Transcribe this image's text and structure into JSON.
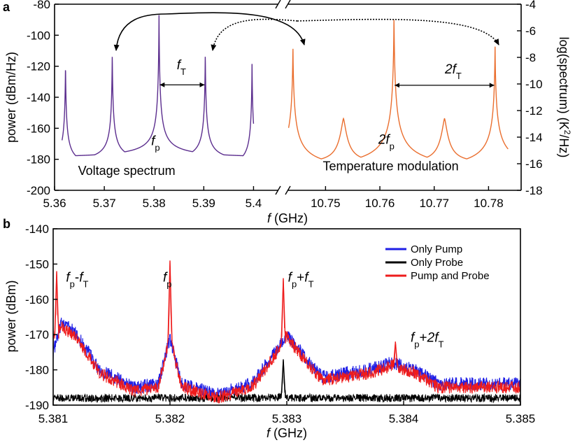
{
  "chart_data": [
    {
      "panel": "a",
      "type": "line",
      "xlabel_var": "f",
      "xlabel_unit": " (GHz)",
      "ylabel_left": "power (dBm/Hz)",
      "ylabel_right_pre": "log(spectrum) (K",
      "ylabel_right_sup": "2",
      "ylabel_right_post": "/Hz)",
      "ylim_left": [
        -200,
        -80
      ],
      "ylim_right": [
        -18,
        -4
      ],
      "x_segments": [
        {
          "xlim": [
            5.36,
            5.405
          ],
          "ticks": [
            "5.36",
            "5.37",
            "5.38",
            "5.39",
            "5.4"
          ]
        },
        {
          "xlim": [
            10.743,
            10.786
          ],
          "ticks": [
            "10.75",
            "10.76",
            "10.77",
            "10.78"
          ]
        }
      ],
      "yticks_left": [
        "-80",
        "-100",
        "-120",
        "-140",
        "-160",
        "-180",
        "-200"
      ],
      "yticks_right": [
        "-4",
        "-6",
        "-8",
        "-10",
        "-12",
        "-14",
        "-16",
        "-18"
      ],
      "colors": {
        "voltage": "#5b2d8e",
        "temperature": "#ea6e2e"
      },
      "series": [
        {
          "name": "Voltage spectrum",
          "axis": "left",
          "baseline": [
            [
              5.3615,
              -187
            ],
            [
              5.37,
              -184
            ],
            [
              5.381,
              -180
            ],
            [
              5.39,
              -183
            ],
            [
              5.4,
              -188
            ]
          ],
          "peaks": [
            {
              "x": 5.3622,
              "y": -117
            },
            {
              "x": 5.3716,
              "y": -110
            },
            {
              "x": 5.381,
              "y": -85
            },
            {
              "x": 5.3903,
              "y": -110
            },
            {
              "x": 5.3997,
              "y": -117
            }
          ]
        },
        {
          "name": "Temperature modulation",
          "axis": "right",
          "peaks": [
            {
              "x": 10.744,
              "y": -6.8
            },
            {
              "x": 10.7626,
              "y": -4.5
            },
            {
              "x": 10.7812,
              "y": -6.8
            }
          ],
          "half_peaks": [
            {
              "x": 10.7533,
              "y": -12.6
            },
            {
              "x": 10.7719,
              "y": -12.6
            }
          ],
          "troughs": [
            {
              "x": 10.7458,
              "y": -16.5
            },
            {
              "x": 10.7533,
              "y": -14.8
            },
            {
              "x": 10.7605,
              "y": -14.3
            },
            {
              "x": 10.7647,
              "y": -14.3
            },
            {
              "x": 10.7719,
              "y": -15.1
            },
            {
              "x": 10.7794,
              "y": -16.3
            }
          ],
          "start": {
            "x": 10.7432,
            "y": -13.5
          }
        }
      ],
      "annotations": [
        {
          "text_var": "f",
          "text_sub": "T",
          "x": 5.3855,
          "y": -122
        },
        {
          "text_var": "f",
          "text_sub": "p",
          "x": 5.3803,
          "y": -171
        },
        {
          "text_var": "2f",
          "text_sub": "T",
          "x": 10.7735,
          "y": -9.2
        },
        {
          "text_var": "2f",
          "text_sub": "p",
          "x": 10.7612,
          "y": -14.5
        }
      ],
      "spectrum_labels": [
        {
          "text": "Voltage spectrum",
          "x": 5.3745,
          "y": -190
        },
        {
          "text": "Temperature modulation",
          "x": 10.762,
          "y": -16.5
        }
      ],
      "double_arrows": [
        {
          "segment": 0,
          "x1": 5.381,
          "x2": 5.3903,
          "y": -132
        },
        {
          "segment": 1,
          "x1": 10.7626,
          "x2": 10.7812,
          "y": -10.1
        }
      ]
    },
    {
      "panel": "b",
      "type": "line",
      "xlabel_var": "f",
      "xlabel_unit": " (GHz)",
      "ylabel": "power (dBm)",
      "xlim": [
        5.381,
        5.385
      ],
      "ylim": [
        -190,
        -140
      ],
      "xticks": [
        5.381,
        5.382,
        5.383,
        5.384,
        5.385
      ],
      "xtick_labels": [
        "5.381",
        "5.382",
        "5.383",
        "5.384",
        "5.385"
      ],
      "yticks": [
        -140,
        -150,
        -160,
        -170,
        -180,
        -190
      ],
      "ytick_labels": [
        "-140",
        "-150",
        "-160",
        "-170",
        "-180",
        "-190"
      ],
      "legend_position": "top-right",
      "series": [
        {
          "name": "Only Pump",
          "color": "#1f1fe6",
          "envelope": [
            [
              5.381,
              -175
            ],
            [
              5.38108,
              -166
            ],
            [
              5.3812,
              -170
            ],
            [
              5.3814,
              -180
            ],
            [
              5.3817,
              -185
            ],
            [
              5.3819,
              -184
            ],
            [
              5.382,
              -171
            ],
            [
              5.3821,
              -184
            ],
            [
              5.3824,
              -187
            ],
            [
              5.3827,
              -184
            ],
            [
              5.3829,
              -175
            ],
            [
              5.383,
              -170
            ],
            [
              5.3831,
              -174
            ],
            [
              5.3833,
              -182
            ],
            [
              5.3837,
              -180
            ],
            [
              5.3839,
              -178
            ],
            [
              5.3841,
              -180
            ],
            [
              5.3843,
              -184
            ],
            [
              5.385,
              -184
            ]
          ],
          "peaks": [],
          "noise": 1.2
        },
        {
          "name": "Only Probe",
          "color": "#000000",
          "envelope": [
            [
              5.381,
              -188
            ],
            [
              5.385,
              -188
            ]
          ],
          "peaks": [
            {
              "x": 5.38297,
              "y": -177
            }
          ],
          "noise": 0.7
        },
        {
          "name": "Pump and Probe",
          "color": "#ee1c1c",
          "envelope": [
            [
              5.381,
              -173
            ],
            [
              5.38108,
              -168
            ],
            [
              5.3812,
              -171
            ],
            [
              5.3814,
              -181
            ],
            [
              5.3817,
              -186
            ],
            [
              5.3819,
              -185
            ],
            [
              5.382,
              -172
            ],
            [
              5.3821,
              -185
            ],
            [
              5.3824,
              -188
            ],
            [
              5.3827,
              -185
            ],
            [
              5.3829,
              -176
            ],
            [
              5.383,
              -171
            ],
            [
              5.3831,
              -175
            ],
            [
              5.3833,
              -183
            ],
            [
              5.3837,
              -181
            ],
            [
              5.3839,
              -179
            ],
            [
              5.3841,
              -181
            ],
            [
              5.3843,
              -185
            ],
            [
              5.385,
              -185
            ]
          ],
          "peaks": [
            {
              "x": 5.38103,
              "y": -152
            },
            {
              "x": 5.382,
              "y": -149
            },
            {
              "x": 5.38297,
              "y": -154
            },
            {
              "x": 5.38393,
              "y": -172
            }
          ],
          "noise": 1.1
        }
      ],
      "annotations": [
        {
          "var1": "f",
          "sub1": "p",
          "op": "-",
          "var2": "f",
          "sub2": "T",
          "x": 5.38111,
          "y": -155
        },
        {
          "var1": "f",
          "sub1": "p",
          "op": "",
          "var2": "",
          "sub2": "",
          "x": 5.38194,
          "y": -155
        },
        {
          "var1": "f",
          "sub1": "p",
          "op": "+",
          "var2": "f",
          "sub2": "T",
          "x": 5.38301,
          "y": -155
        },
        {
          "var1": "f",
          "sub1": "p",
          "op": "+",
          "var2": "2f",
          "sub2": "T",
          "x": 5.38406,
          "y": -172
        }
      ]
    }
  ]
}
